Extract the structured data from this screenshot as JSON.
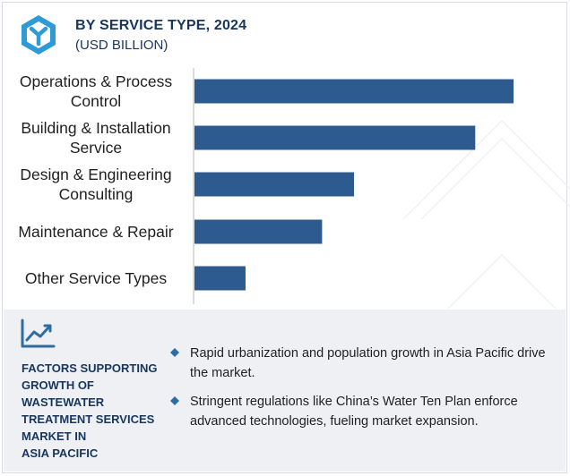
{
  "header": {
    "title": "BY SERVICE TYPE, 2024",
    "subtitle": "(USD BILLION)"
  },
  "chart_data": {
    "type": "bar",
    "orientation": "horizontal",
    "categories": [
      [
        "Operations & Process",
        "Control"
      ],
      [
        "Building & Installation",
        "Service"
      ],
      [
        "Design & Engineering",
        "Consulting"
      ],
      [
        "Maintenance & Repair"
      ],
      [
        "Other Service Types"
      ]
    ],
    "values": [
      100,
      88,
      50,
      40,
      16
    ],
    "xlim": [
      0,
      100
    ],
    "grid": false,
    "bar_color": "#2e5b8f"
  },
  "factors": {
    "title_lines": [
      "FACTORS SUPPORTING",
      "GROWTH OF",
      "WASTEWATER",
      "TREATMENT SERVICES",
      "MARKET IN",
      "ASIA PACIFIC"
    ],
    "bullets": [
      "Rapid urbanization and population growth in Asia Pacific drive the market.",
      "Stringent regulations like China’s Water Ten Plan enforce advanced technologies, fueling market expansion."
    ]
  },
  "colors": {
    "brand": "#17365d",
    "accent": "#2e6da4",
    "bar": "#2e5b8f",
    "panel": "#eef0f4"
  },
  "icons": {
    "logo": "hexagon-y-logo-icon",
    "trend": "trend-line-chart-icon",
    "bullet": "diamond-bullet-icon"
  }
}
